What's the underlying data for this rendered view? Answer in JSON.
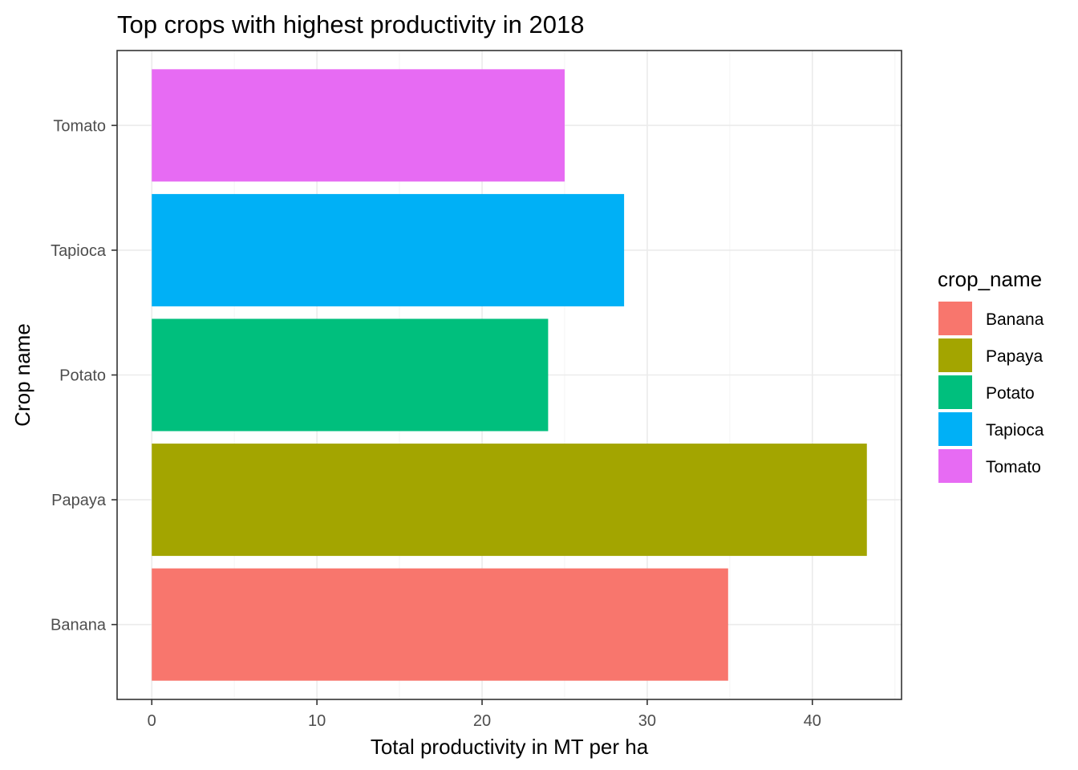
{
  "chart_data": {
    "type": "bar",
    "orientation": "horizontal",
    "title": "Top crops with highest productivity in 2018",
    "xlabel": "Total productivity in MT per ha",
    "ylabel": "Crop name",
    "categories": [
      "Banana",
      "Papaya",
      "Potato",
      "Tapioca",
      "Tomato"
    ],
    "values": [
      34.9,
      43.3,
      24.0,
      28.6,
      25.0
    ],
    "colors": [
      "#F8766D",
      "#A3A500",
      "#00BF7D",
      "#00B0F6",
      "#E76BF3"
    ],
    "xlim": [
      -2.1,
      45.4
    ],
    "xticks": [
      0,
      10,
      20,
      30,
      40
    ],
    "xtick_labels": [
      "0",
      "10",
      "20",
      "30",
      "40"
    ],
    "grid": true,
    "legend": {
      "title": "crop_name",
      "placement": "right",
      "items": [
        "Banana",
        "Papaya",
        "Potato",
        "Tapioca",
        "Tomato"
      ]
    }
  }
}
